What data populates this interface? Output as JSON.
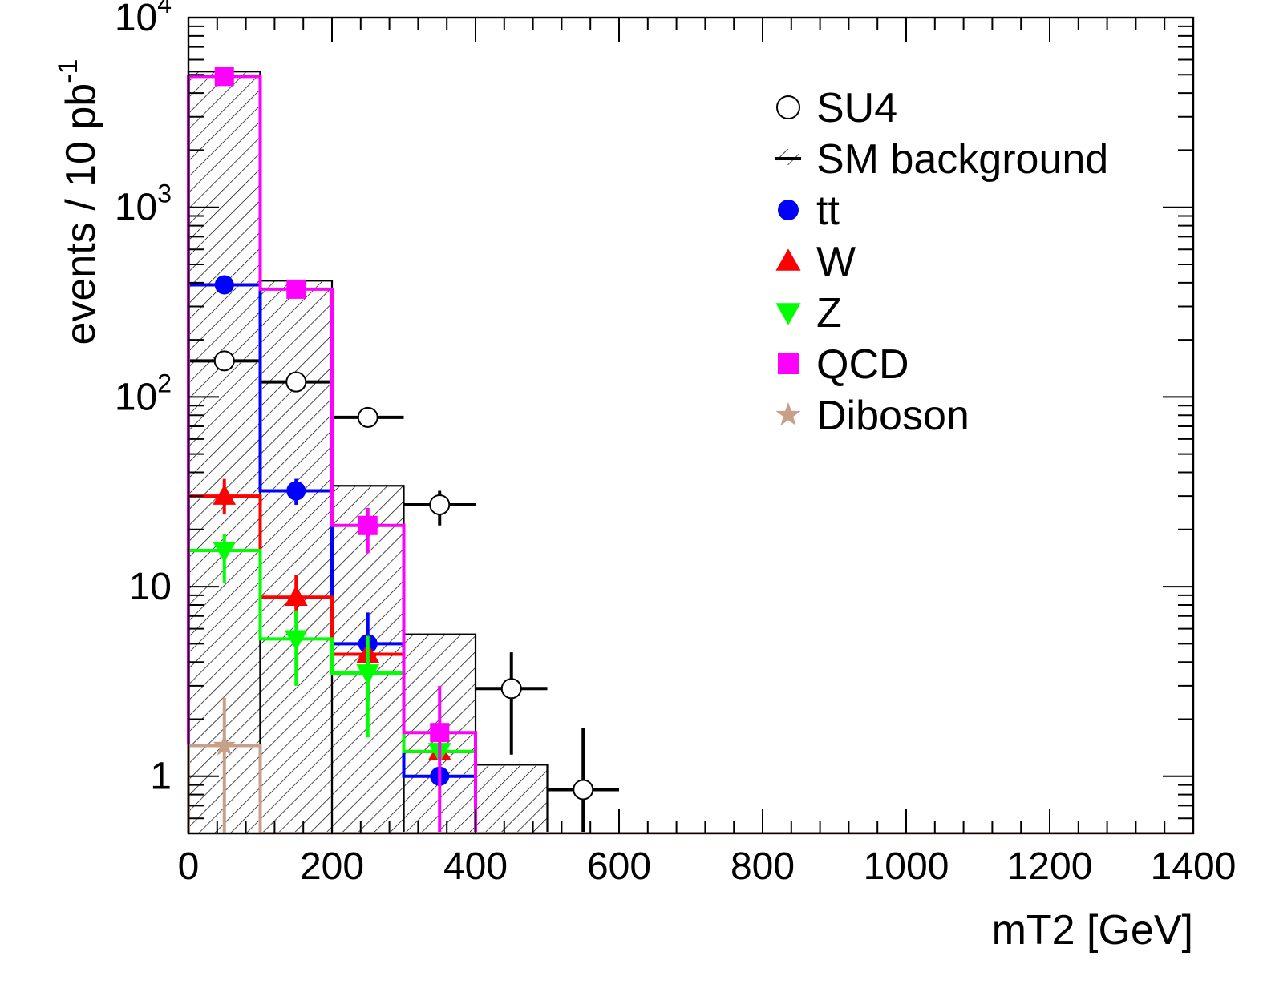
{
  "chart_data": {
    "type": "histogram",
    "title": "",
    "xlabel": "mT2 [GeV]",
    "ylabel": {
      "main": "events / 10 pb",
      "sup": "-1"
    },
    "xlim": [
      0,
      1400
    ],
    "ylim": [
      0.5,
      10000
    ],
    "yscale": "log",
    "grid": false,
    "legend_position": "top-right",
    "bin_edges": [
      0,
      100,
      200,
      300,
      400,
      500,
      600,
      700,
      800,
      900,
      1000,
      1100,
      1200,
      1300,
      1400
    ],
    "x_ticks": [
      "0",
      "200",
      "400",
      "600",
      "800",
      "1000",
      "1200",
      "1400"
    ],
    "x_tick_values": [
      0,
      200,
      400,
      600,
      800,
      1000,
      1200,
      1400
    ],
    "y_ticks": [
      {
        "value": 1,
        "base": "1",
        "sup": ""
      },
      {
        "value": 10,
        "base": "10",
        "sup": ""
      },
      {
        "value": 100,
        "base": "10",
        "sup": "2"
      },
      {
        "value": 1000,
        "base": "10",
        "sup": "3"
      },
      {
        "value": 10000,
        "base": "10",
        "sup": "4"
      }
    ],
    "sm_background": {
      "name": "SM background",
      "values": [
        5200,
        410,
        34,
        5.6,
        1.15
      ]
    },
    "series": [
      {
        "name": "SU4",
        "marker": "open-circle",
        "color": "#000000",
        "line": false,
        "values": [
          155,
          120,
          78,
          27,
          2.9,
          0.85
        ],
        "errors": [
          null,
          null,
          null,
          [
            21,
            32
          ],
          [
            1.3,
            4.5
          ],
          [
            0.15,
            1.8
          ]
        ]
      },
      {
        "name": "tt",
        "marker": "circle",
        "color": "#0000ff",
        "line": true,
        "values": [
          390,
          32,
          5.0,
          1.0
        ],
        "errors": [
          null,
          [
            27,
            37
          ],
          [
            2.5,
            7.3
          ],
          null
        ]
      },
      {
        "name": "W",
        "marker": "triangle-up",
        "color": "#ff0000",
        "line": true,
        "values": [
          30,
          8.8,
          4.4,
          1.35
        ],
        "errors": [
          [
            24,
            37
          ],
          [
            6.5,
            11.5
          ],
          null,
          null
        ]
      },
      {
        "name": "Z",
        "marker": "triangle-down",
        "color": "#00ff00",
        "line": true,
        "values": [
          15.5,
          5.3,
          3.5,
          1.35
        ],
        "errors": [
          [
            10.5,
            19
          ],
          [
            3.0,
            7.5
          ],
          [
            1.6,
            5.5
          ],
          null
        ]
      },
      {
        "name": "QCD",
        "marker": "square",
        "color": "#ff00ff",
        "line": true,
        "values": [
          4900,
          370,
          21,
          1.7
        ],
        "errors": [
          null,
          null,
          [
            15,
            26
          ],
          [
            0.5,
            3.0
          ]
        ]
      },
      {
        "name": "Diboson",
        "marker": "star",
        "color": "#c8a08a",
        "line": true,
        "values": [
          1.45
        ],
        "errors": [
          [
            0.5,
            2.6
          ]
        ]
      }
    ]
  }
}
